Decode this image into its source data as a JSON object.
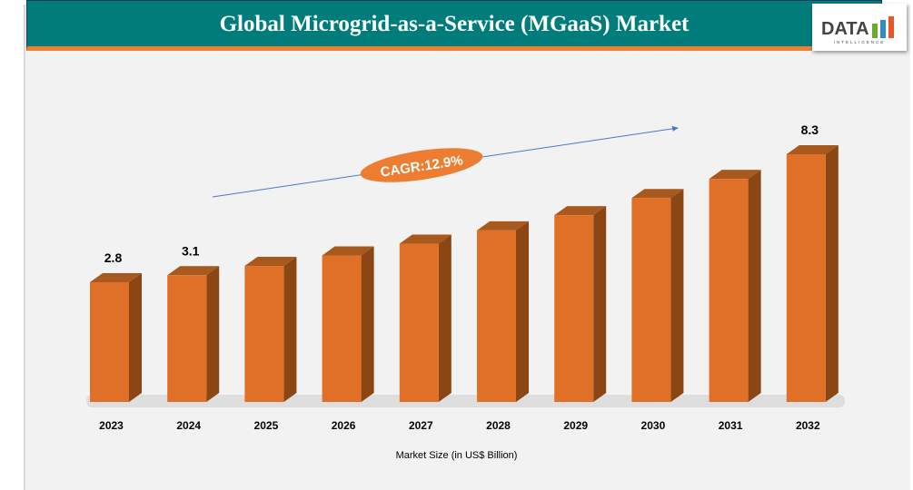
{
  "header": {
    "title": "Global Microgrid-as-a-Service (MGaaS) Market"
  },
  "logo": {
    "text": "DATA",
    "subtext": "INTELLIGENCE"
  },
  "chart_data": {
    "type": "bar",
    "title": "Global Microgrid-as-a-Service (MGaaS) Market",
    "xlabel": "Market Size (in US$ Billion)",
    "ylabel": "",
    "categories": [
      "2023",
      "2024",
      "2025",
      "2026",
      "2027",
      "2028",
      "2029",
      "2030",
      "2031",
      "2032"
    ],
    "values": [
      2.8,
      3.1,
      3.5,
      3.95,
      4.46,
      5.03,
      5.68,
      6.42,
      7.24,
      8.3
    ],
    "data_labels": {
      "2023": "2.8",
      "2024": "3.1",
      "2032": "8.3"
    },
    "annotation": "CAGR:12.9%",
    "grid": false,
    "colors": {
      "bar_front": "#e06f28",
      "bar_side": "#8c4614",
      "bar_top": "#a85a1e",
      "title_bg": "#007d7b",
      "accent": "#f08030",
      "arrow": "#4a78c8"
    }
  }
}
